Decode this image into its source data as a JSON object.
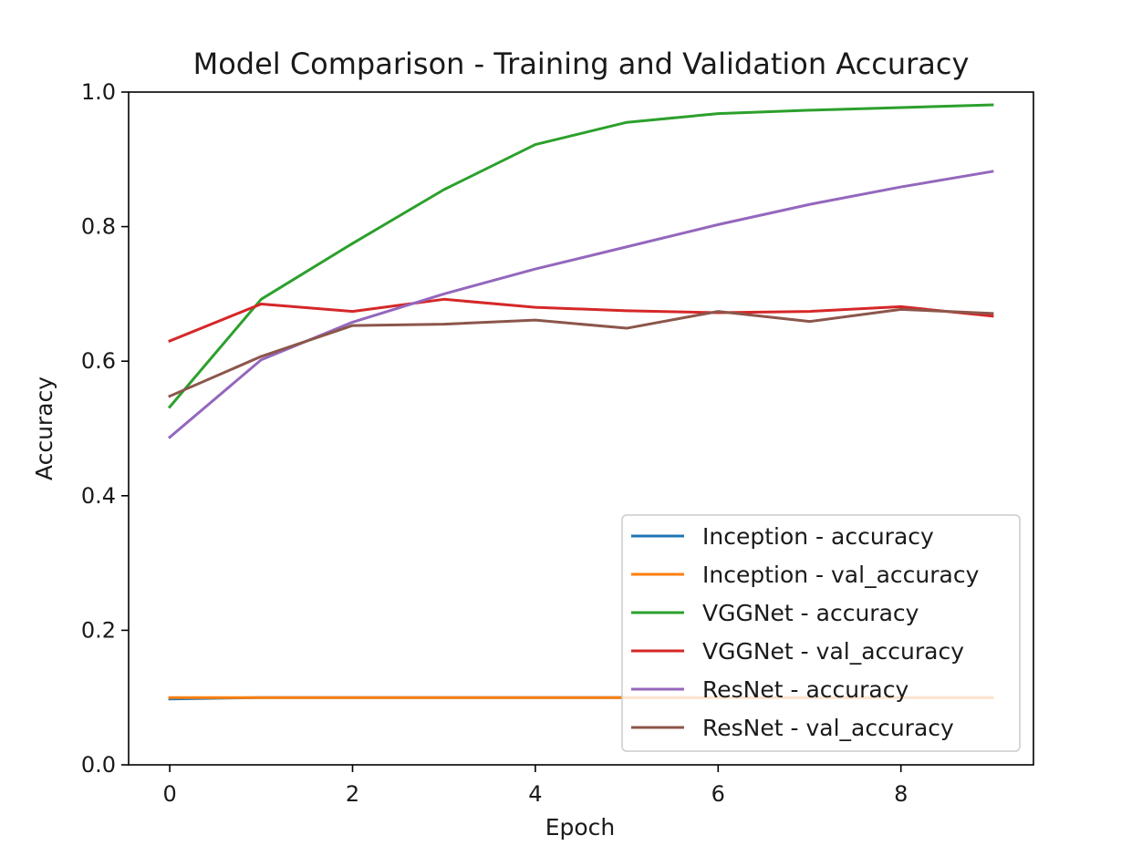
{
  "chart_data": {
    "type": "line",
    "title": "Model Comparison - Training and Validation Accuracy",
    "xlabel": "Epoch",
    "ylabel": "Accuracy",
    "xlim": [
      -0.45,
      9.45
    ],
    "ylim": [
      0.0,
      1.0
    ],
    "x": [
      0,
      1,
      2,
      3,
      4,
      5,
      6,
      7,
      8,
      9
    ],
    "xticks": [
      0,
      2,
      4,
      6,
      8
    ],
    "xtick_labels": [
      "0",
      "2",
      "4",
      "6",
      "8"
    ],
    "yticks": [
      0.0,
      0.2,
      0.4,
      0.6,
      0.8,
      1.0
    ],
    "ytick_labels": [
      "0.0",
      "0.2",
      "0.4",
      "0.6",
      "0.8",
      "1.0"
    ],
    "grid": false,
    "legend_position": "lower-right",
    "series": [
      {
        "name": "Inception - accuracy",
        "color": "#1f77b4",
        "values": [
          0.098,
          0.1,
          0.1,
          0.1,
          0.1,
          0.1,
          0.1,
          0.1,
          0.1,
          0.1
        ]
      },
      {
        "name": "Inception - val_accuracy",
        "color": "#ff7f0e",
        "values": [
          0.1,
          0.1,
          0.1,
          0.1,
          0.1,
          0.1,
          0.1,
          0.1,
          0.1,
          0.1
        ]
      },
      {
        "name": "VGGNet - accuracy",
        "color": "#2ca02c",
        "values": [
          0.532,
          0.692,
          0.775,
          0.855,
          0.922,
          0.955,
          0.968,
          0.973,
          0.977,
          0.981
        ]
      },
      {
        "name": "VGGNet - val_accuracy",
        "color": "#d62728",
        "values": [
          0.63,
          0.685,
          0.674,
          0.692,
          0.68,
          0.675,
          0.672,
          0.674,
          0.681,
          0.667
        ]
      },
      {
        "name": "ResNet - accuracy",
        "color": "#9467bd",
        "values": [
          0.487,
          0.602,
          0.658,
          0.7,
          0.737,
          0.77,
          0.803,
          0.833,
          0.859,
          0.882
        ]
      },
      {
        "name": "ResNet - val_accuracy",
        "color": "#8c564b",
        "values": [
          0.548,
          0.607,
          0.653,
          0.655,
          0.661,
          0.649,
          0.674,
          0.659,
          0.677,
          0.671
        ]
      }
    ]
  }
}
